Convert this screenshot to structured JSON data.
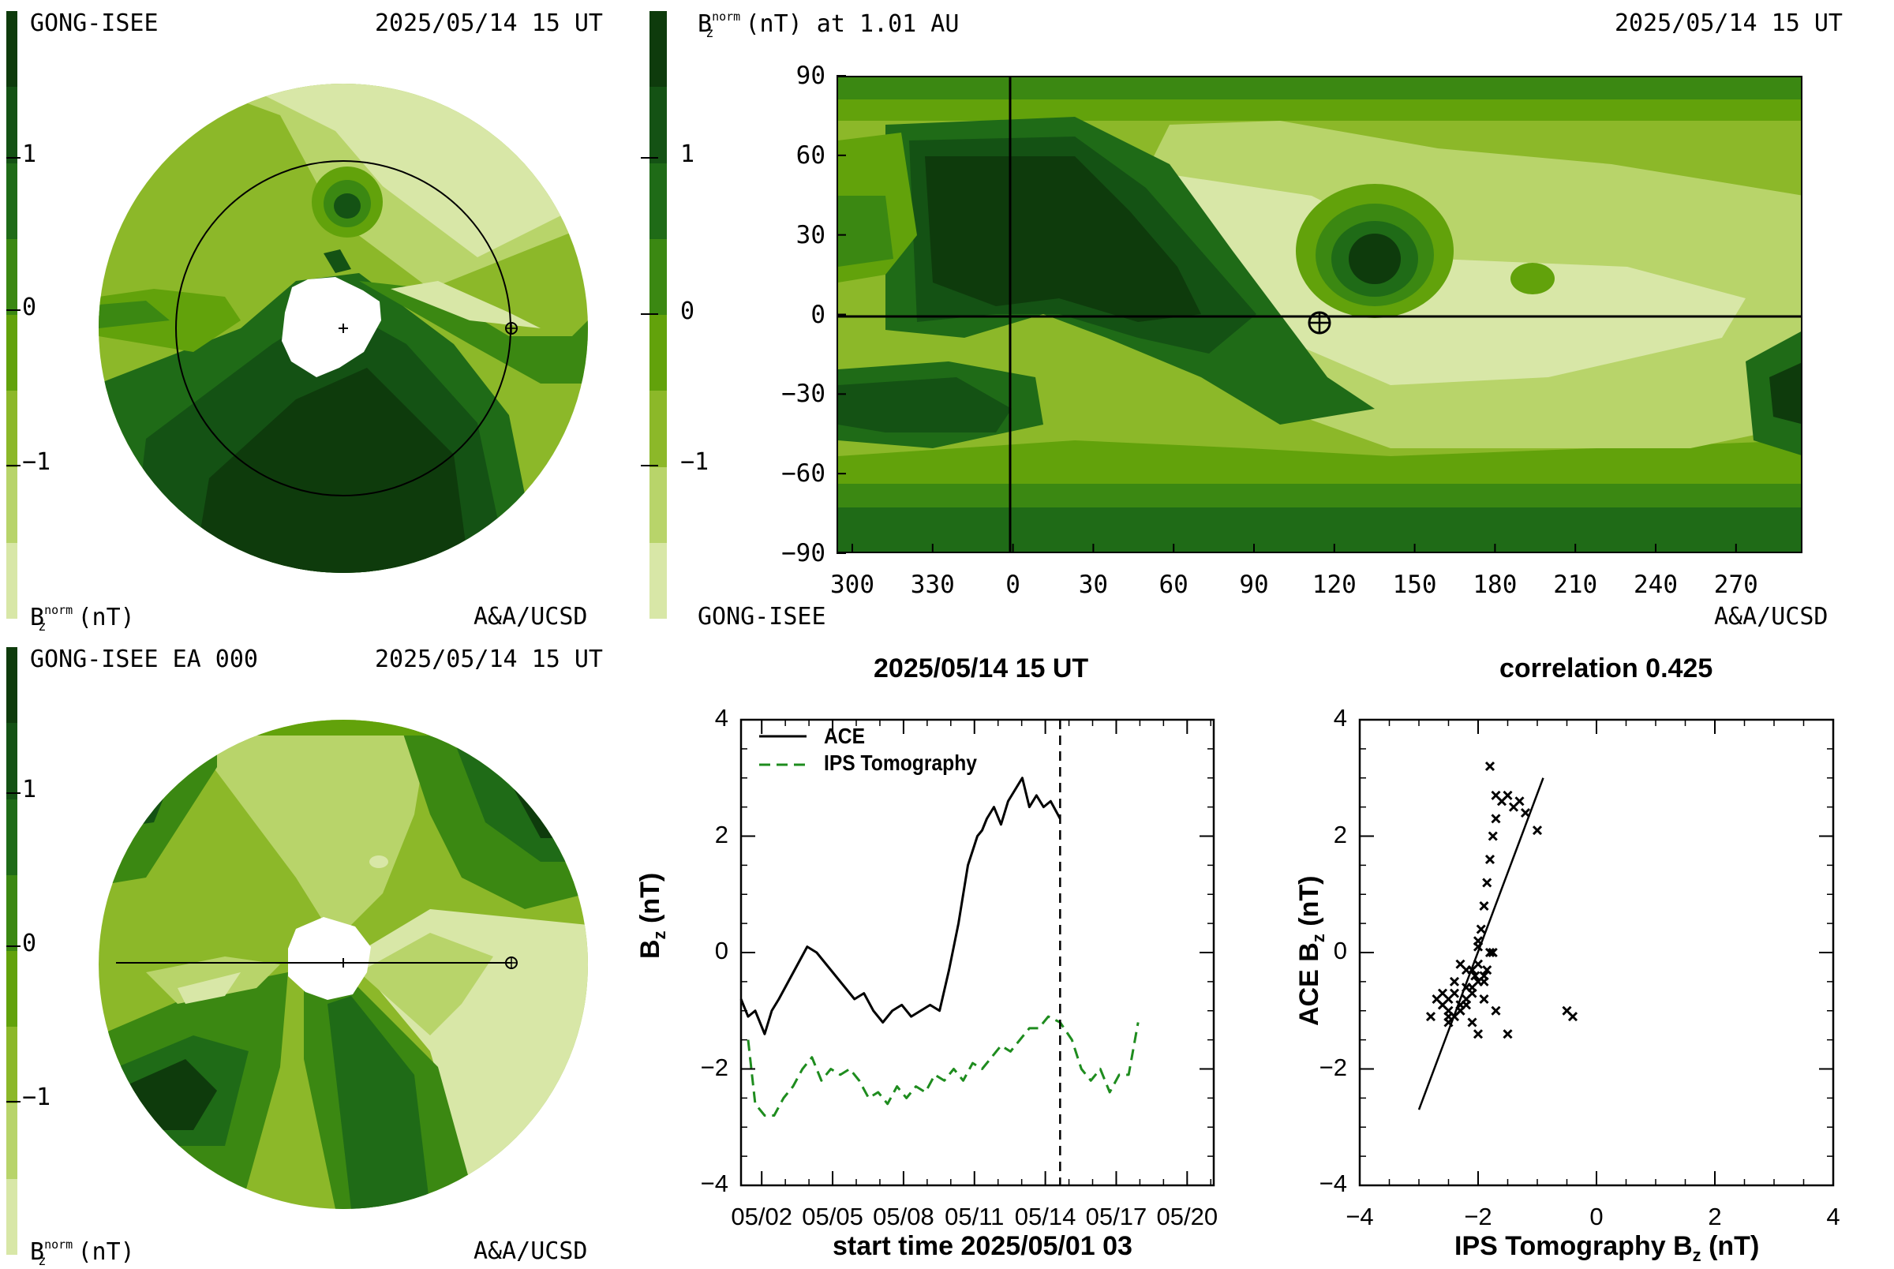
{
  "colorbar": {
    "colors": [
      "#0e3b0c",
      "#145214",
      "#1f6b17",
      "#3b8812",
      "#62a20b",
      "#8cb829",
      "#b8d46a",
      "#d8e7a7"
    ],
    "ticks": [
      "1",
      "0",
      "−1"
    ]
  },
  "panel_tl": {
    "source": "GONG-ISEE",
    "time": "2025/05/14 15 UT",
    "label_base": "B",
    "label_sup": "norm",
    "label_sub": "z",
    "label_unit": "(nT)",
    "credit": "A&A/UCSD"
  },
  "panel_tr": {
    "title_base": "B",
    "title_sup": "norm",
    "title_sub": "z",
    "title_rest": "(nT) at 1.01 AU",
    "time": "2025/05/14 15 UT",
    "source": "GONG-ISEE",
    "credit": "A&A/UCSD",
    "yticks": [
      "90",
      "60",
      "30",
      "0",
      "−30",
      "−60",
      "−90"
    ],
    "xticks": [
      "300",
      "330",
      "0",
      "30",
      "60",
      "90",
      "120",
      "150",
      "180",
      "210",
      "240",
      "270"
    ]
  },
  "panel_bl": {
    "source": "GONG-ISEE EA 000",
    "time": "2025/05/14 15 UT",
    "label_base": "B",
    "label_sup": "norm",
    "label_sub": "z",
    "label_unit": "(nT)",
    "credit": "A&A/UCSD"
  },
  "colors": {
    "ace": "#000000",
    "ips": "#1e8c1e",
    "map_bg": "#8cb829"
  },
  "chart_data": [
    {
      "type": "line",
      "title": "2025/05/14 15 UT",
      "xlabel": "start time 2025/05/01 03",
      "ylabel": "B",
      "ylabel_sub": "z",
      "ylabel_unit": "(nT)",
      "xlim": [
        0,
        20
      ],
      "ylim": [
        -4,
        4
      ],
      "xtick_labels": [
        "05/02",
        "05/05",
        "05/08",
        "05/11",
        "05/14",
        "05/17",
        "05/20"
      ],
      "ytick_labels": [
        "4",
        "2",
        "0",
        "−2",
        "−4"
      ],
      "vline": 13.5,
      "series": [
        {
          "name": "ACE",
          "style": "solid",
          "x": [
            0,
            0.3,
            0.6,
            1.0,
            1.3,
            1.6,
            2.0,
            2.4,
            2.8,
            3.2,
            3.6,
            4.0,
            4.4,
            4.8,
            5.2,
            5.6,
            6.0,
            6.4,
            6.8,
            7.2,
            7.6,
            8.0,
            8.4,
            8.8,
            9.2,
            9.6,
            10.0,
            10.2,
            10.4,
            10.7,
            11.0,
            11.3,
            11.6,
            11.9,
            12.2,
            12.5,
            12.8,
            13.1,
            13.5
          ],
          "y": [
            -0.8,
            -1.1,
            -1.0,
            -1.4,
            -1.0,
            -0.8,
            -0.5,
            -0.2,
            0.1,
            0.0,
            -0.2,
            -0.4,
            -0.6,
            -0.8,
            -0.7,
            -1.0,
            -1.2,
            -1.0,
            -0.9,
            -1.1,
            -1.0,
            -0.9,
            -1.0,
            -0.3,
            0.5,
            1.5,
            2.0,
            2.1,
            2.3,
            2.5,
            2.2,
            2.6,
            2.8,
            3.0,
            2.5,
            2.7,
            2.5,
            2.6,
            2.3
          ]
        },
        {
          "name": "IPS Tomography",
          "style": "dashed",
          "x": [
            0.3,
            0.6,
            1.0,
            1.4,
            1.8,
            2.2,
            2.6,
            3.0,
            3.4,
            3.8,
            4.2,
            4.6,
            5.0,
            5.4,
            5.8,
            6.2,
            6.6,
            7.0,
            7.4,
            7.8,
            8.2,
            8.6,
            9.0,
            9.4,
            9.8,
            10.2,
            10.6,
            11.0,
            11.4,
            11.8,
            12.2,
            12.6,
            13.0,
            13.5,
            14.0,
            14.4,
            14.8,
            15.2,
            15.6,
            16.0,
            16.4,
            16.8
          ],
          "y": [
            -1.5,
            -2.6,
            -2.8,
            -2.8,
            -2.5,
            -2.3,
            -2.0,
            -1.8,
            -2.2,
            -2.0,
            -2.1,
            -2.0,
            -2.2,
            -2.5,
            -2.4,
            -2.6,
            -2.3,
            -2.5,
            -2.3,
            -2.4,
            -2.1,
            -2.2,
            -2.0,
            -2.2,
            -1.9,
            -2.0,
            -1.8,
            -1.6,
            -1.7,
            -1.5,
            -1.3,
            -1.3,
            -1.1,
            -1.2,
            -1.5,
            -2.0,
            -2.2,
            -2.0,
            -2.4,
            -2.1,
            -2.1,
            -1.2
          ]
        }
      ]
    },
    {
      "type": "scatter",
      "title": "correlation 0.425",
      "xlabel": "IPS Tomography B",
      "xlabel_sub": "z",
      "xlabel_unit": "(nT)",
      "ylabel": "ACE B",
      "ylabel_sub": "z",
      "ylabel_unit": "(nT)",
      "xlim": [
        -4,
        4
      ],
      "ylim": [
        -4,
        4
      ],
      "xtick_labels": [
        "−4",
        "−2",
        "0",
        "2",
        "4"
      ],
      "ytick_labels": [
        "4",
        "2",
        "0",
        "−2",
        "−4"
      ],
      "fit_line": {
        "x": [
          -3.0,
          -0.9
        ],
        "y": [
          -2.7,
          3.0
        ]
      },
      "points": {
        "x": [
          -1.8,
          -1.7,
          -1.6,
          -1.5,
          -1.4,
          -1.3,
          -1.2,
          -1.0,
          -1.7,
          -1.75,
          -1.8,
          -1.85,
          -1.9,
          -1.95,
          -2.0,
          -2.0,
          -2.05,
          -2.1,
          -1.9,
          -1.8,
          -1.85,
          -1.75,
          -2.2,
          -2.3,
          -2.4,
          -2.5,
          -2.6,
          -2.7,
          -2.5,
          -2.3,
          -2.2,
          -2.1,
          -2.0,
          -1.9,
          -2.2,
          -2.4,
          -2.6,
          -2.8,
          -2.5,
          -2.3,
          -2.1,
          -1.9,
          -1.7,
          -0.5,
          -0.4,
          -2.0,
          -1.5,
          -2.6,
          -2.4,
          -2.2,
          -2.1,
          -2.0,
          -2.3,
          -2.5
        ],
        "y": [
          3.2,
          2.7,
          2.6,
          2.7,
          2.5,
          2.6,
          2.4,
          2.1,
          2.3,
          2.0,
          1.6,
          1.2,
          0.8,
          0.4,
          0.2,
          -0.2,
          -0.4,
          -0.6,
          -0.5,
          0.0,
          -0.3,
          0.0,
          -0.8,
          -1.0,
          -1.1,
          -0.8,
          -0.7,
          -0.8,
          -1.2,
          -1.0,
          -0.6,
          -0.3,
          -0.5,
          -0.8,
          -0.3,
          -0.5,
          -0.9,
          -1.1,
          -1.1,
          -0.9,
          -0.7,
          -0.4,
          -1.0,
          -1.0,
          -1.1,
          -1.4,
          -1.4,
          -0.9,
          -0.7,
          -0.9,
          -1.2,
          0.1,
          -0.2,
          -1.0
        ]
      }
    }
  ]
}
